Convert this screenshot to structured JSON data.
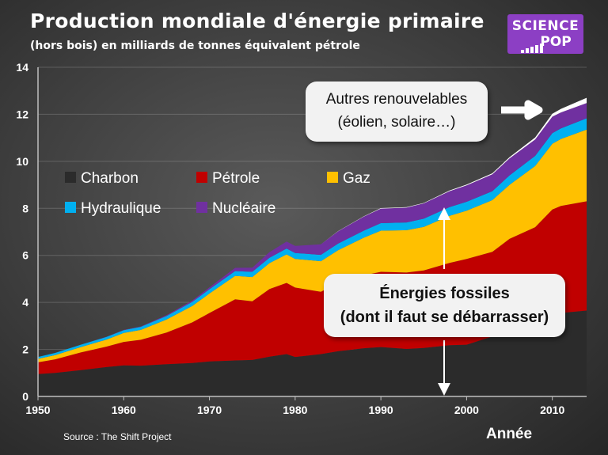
{
  "header": {
    "title": "Production mondiale d'énergie primaire",
    "subtitle": "(hors bois) en milliards de tonnes équivalent pétrole"
  },
  "logo": {
    "line1": "SCIENCE",
    "line2": "POP"
  },
  "annotations": {
    "renewables_line1": "Autres renouvelables",
    "renewables_line2": "(éolien, solaire…)",
    "fossil_line1": "Énergies fossiles",
    "fossil_line2": "(dont il faut se débarrasser)"
  },
  "footer": {
    "source": "Source : The Shift Project",
    "xaxis_title": "Année"
  },
  "colors": {
    "Charbon": "#2b2b2b",
    "Pétrole": "#c00000",
    "Gaz": "#ffc000",
    "Hydraulique": "#00b0f0",
    "Nucléaire": "#7030a0",
    "Autres renouvelables": "#ffffff"
  },
  "chart_data": {
    "type": "area",
    "stacked": true,
    "title": "Production mondiale d'énergie primaire",
    "subtitle": "(hors bois) en milliards de tonnes équivalent pétrole",
    "xlabel": "Année",
    "ylabel": "",
    "xlim": [
      1950,
      2014
    ],
    "ylim": [
      0,
      14
    ],
    "xticks": [
      1950,
      1960,
      1970,
      1980,
      1990,
      2000,
      2010
    ],
    "yticks": [
      0,
      2,
      4,
      6,
      8,
      10,
      12,
      14
    ],
    "grid": true,
    "legend": [
      "Charbon",
      "Pétrole",
      "Gaz",
      "Hydraulique",
      "Nucléaire"
    ],
    "legend_placement": "top-left, inside plot",
    "x": [
      1950,
      1952,
      1955,
      1958,
      1960,
      1962,
      1965,
      1968,
      1970,
      1973,
      1975,
      1977,
      1979,
      1980,
      1983,
      1985,
      1988,
      1990,
      1993,
      1995,
      1998,
      2000,
      2003,
      2005,
      2008,
      2010,
      2011,
      2014
    ],
    "series": [
      {
        "name": "Charbon",
        "values": [
          0.95,
          1.0,
          1.12,
          1.25,
          1.32,
          1.31,
          1.37,
          1.42,
          1.49,
          1.53,
          1.55,
          1.69,
          1.8,
          1.68,
          1.8,
          1.92,
          2.05,
          2.1,
          2.02,
          2.06,
          2.18,
          2.2,
          2.55,
          2.8,
          3.2,
          3.4,
          3.55,
          3.65
        ]
      },
      {
        "name": "Pétrole",
        "values": [
          0.5,
          0.58,
          0.75,
          0.87,
          1.0,
          1.1,
          1.35,
          1.73,
          2.06,
          2.6,
          2.5,
          2.88,
          3.03,
          2.95,
          2.65,
          2.9,
          3.1,
          3.2,
          3.25,
          3.3,
          3.5,
          3.65,
          3.6,
          3.9,
          4.0,
          4.55,
          4.55,
          4.65
        ]
      },
      {
        "name": "Gaz",
        "values": [
          0.15,
          0.18,
          0.23,
          0.3,
          0.38,
          0.42,
          0.55,
          0.7,
          0.83,
          1.0,
          1.03,
          1.1,
          1.21,
          1.22,
          1.3,
          1.4,
          1.6,
          1.75,
          1.8,
          1.85,
          2.0,
          2.05,
          2.2,
          2.3,
          2.6,
          2.8,
          2.85,
          3.05
        ]
      },
      {
        "name": "Hydraulique",
        "values": [
          0.08,
          0.09,
          0.1,
          0.11,
          0.12,
          0.13,
          0.15,
          0.17,
          0.18,
          0.2,
          0.22,
          0.23,
          0.25,
          0.25,
          0.27,
          0.28,
          0.3,
          0.32,
          0.33,
          0.35,
          0.37,
          0.38,
          0.38,
          0.4,
          0.43,
          0.45,
          0.45,
          0.48
        ]
      },
      {
        "name": "Nucléaire",
        "values": [
          0.0,
          0.0,
          0.0,
          0.01,
          0.01,
          0.02,
          0.04,
          0.06,
          0.08,
          0.14,
          0.18,
          0.24,
          0.3,
          0.3,
          0.45,
          0.52,
          0.6,
          0.62,
          0.63,
          0.65,
          0.68,
          0.7,
          0.72,
          0.72,
          0.7,
          0.7,
          0.68,
          0.65
        ]
      },
      {
        "name": "Autres renouvelables",
        "values": [
          0.0,
          0.0,
          0.0,
          0.0,
          0.0,
          0.0,
          0.0,
          0.0,
          0.0,
          0.0,
          0.0,
          0.0,
          0.0,
          0.0,
          0.0,
          0.01,
          0.01,
          0.02,
          0.02,
          0.02,
          0.03,
          0.03,
          0.04,
          0.05,
          0.08,
          0.12,
          0.15,
          0.22
        ]
      }
    ]
  }
}
